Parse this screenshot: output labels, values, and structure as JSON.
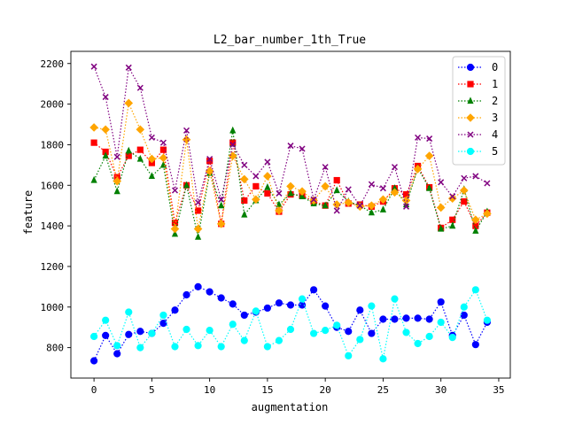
{
  "chart_data": {
    "type": "line",
    "title": "L2_bar_number_1th_True",
    "xlabel": "augmentation",
    "ylabel": "feature",
    "xlim": [
      -2,
      36
    ],
    "ylim": [
      650,
      2260
    ],
    "xticks": [
      0,
      5,
      10,
      15,
      20,
      25,
      30,
      35
    ],
    "yticks": [
      800,
      1000,
      1200,
      1400,
      1600,
      1800,
      2000,
      2200
    ],
    "grid": false,
    "legend_position": "top-right",
    "x": [
      0,
      1,
      2,
      3,
      4,
      5,
      6,
      7,
      8,
      9,
      10,
      11,
      12,
      13,
      14,
      15,
      16,
      17,
      18,
      19,
      20,
      21,
      22,
      23,
      24,
      25,
      26,
      27,
      28,
      29,
      30,
      31,
      32,
      33,
      34
    ],
    "series": [
      {
        "name": "0",
        "color": "#0000ff",
        "marker": "circle",
        "values": [
          735,
          860,
          770,
          865,
          880,
          870,
          920,
          985,
          1060,
          1100,
          1075,
          1045,
          1015,
          960,
          975,
          995,
          1020,
          1010,
          1010,
          1085,
          1005,
          900,
          880,
          985,
          870,
          940,
          940,
          945,
          945,
          940,
          1025,
          860,
          960,
          815,
          925
        ]
      },
      {
        "name": "1",
        "color": "#ff0000",
        "marker": "square",
        "values": [
          1810,
          1765,
          1640,
          1745,
          1775,
          1710,
          1775,
          1415,
          1600,
          1475,
          1720,
          1410,
          1810,
          1525,
          1595,
          1560,
          1470,
          1555,
          1550,
          1520,
          1500,
          1625,
          1510,
          1505,
          1495,
          1520,
          1585,
          1555,
          1695,
          1590,
          1390,
          1430,
          1520,
          1400,
          1465
        ]
      },
      {
        "name": "2",
        "color": "#008000",
        "marker": "triangle",
        "values": [
          1625,
          1745,
          1570,
          1770,
          1730,
          1645,
          1700,
          1360,
          1600,
          1345,
          1660,
          1500,
          1870,
          1455,
          1525,
          1590,
          1505,
          1560,
          1545,
          1510,
          1500,
          1575,
          1520,
          1500,
          1465,
          1480,
          1585,
          1505,
          1685,
          1585,
          1385,
          1400,
          1580,
          1375,
          1470
        ]
      },
      {
        "name": "3",
        "color": "#ffa500",
        "marker": "diamond",
        "values": [
          1885,
          1875,
          1620,
          2005,
          1875,
          1730,
          1735,
          1385,
          1825,
          1385,
          1670,
          1410,
          1745,
          1630,
          1530,
          1645,
          1475,
          1595,
          1570,
          1525,
          1595,
          1505,
          1515,
          1495,
          1500,
          1530,
          1565,
          1525,
          1680,
          1745,
          1490,
          1535,
          1575,
          1430,
          1460
        ]
      },
      {
        "name": "4",
        "color": "#800080",
        "marker": "x",
        "values": [
          2185,
          2035,
          1740,
          2180,
          2080,
          1835,
          1810,
          1575,
          1870,
          1515,
          1730,
          1530,
          1800,
          1700,
          1645,
          1715,
          1560,
          1795,
          1780,
          1530,
          1690,
          1475,
          1580,
          1500,
          1605,
          1585,
          1690,
          1495,
          1835,
          1830,
          1615,
          1545,
          1635,
          1645,
          1610
        ]
      },
      {
        "name": "5",
        "color": "#00ffff",
        "marker": "circle",
        "values": [
          855,
          935,
          810,
          975,
          800,
          870,
          960,
          805,
          890,
          810,
          885,
          805,
          915,
          835,
          980,
          805,
          835,
          890,
          1040,
          870,
          885,
          910,
          760,
          840,
          1005,
          745,
          1040,
          875,
          820,
          855,
          925,
          850,
          1000,
          1085,
          935
        ]
      }
    ]
  }
}
